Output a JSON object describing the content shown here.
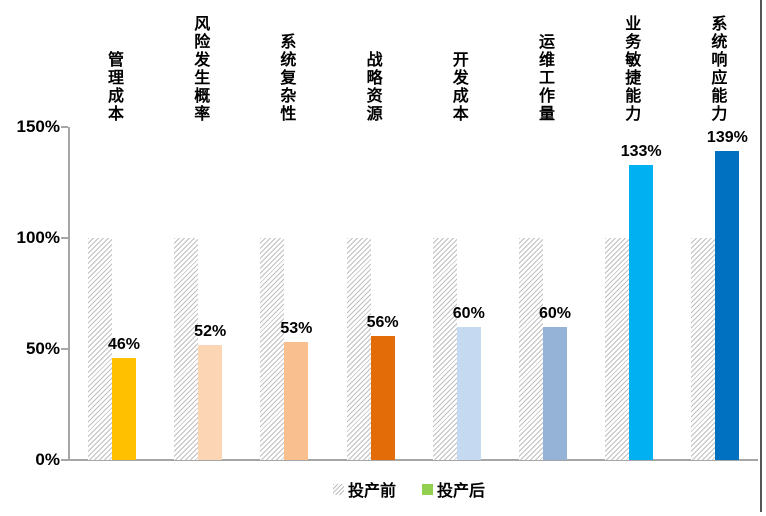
{
  "chart_data": {
    "type": "bar",
    "title": "",
    "categories": [
      "管理成本",
      "风险发生概率",
      "系统复杂性",
      "战略资源",
      "开发成本",
      "运维工作量",
      "业务敏捷能力",
      "系统响应能力"
    ],
    "series": [
      {
        "name": "投产前",
        "style": "hatched",
        "values": [
          100,
          100,
          100,
          100,
          100,
          100,
          100,
          100
        ]
      },
      {
        "name": "投产后",
        "style": "solid",
        "values": [
          46,
          52,
          53,
          56,
          60,
          60,
          133,
          139
        ],
        "colors": [
          "#FFC000",
          "#FCD5B4",
          "#FABF8F",
          "#E36C09",
          "#C5D9F1",
          "#95B3D7",
          "#00B0F0",
          "#0070C0"
        ],
        "data_labels": [
          "46%",
          "52%",
          "53%",
          "56%",
          "60%",
          "60%",
          "133%",
          "139%"
        ]
      }
    ],
    "ylim": [
      0,
      150
    ],
    "yticks": [
      {
        "value": 0,
        "label": "0%"
      },
      {
        "value": 50,
        "label": "50%"
      },
      {
        "value": 100,
        "label": "100%"
      },
      {
        "value": 150,
        "label": "150%"
      }
    ],
    "grid": false,
    "legend_position": "bottom",
    "legend": [
      {
        "label": "投产前",
        "marker": "hatched",
        "color": "#BFBFBF"
      },
      {
        "label": "投产后",
        "marker": "solid",
        "color": "#92D050"
      }
    ]
  },
  "colors": {
    "axis": "#A6A6A6",
    "hatch": "#BFBFBF",
    "text": "#000000",
    "window_edge": "#555555"
  }
}
